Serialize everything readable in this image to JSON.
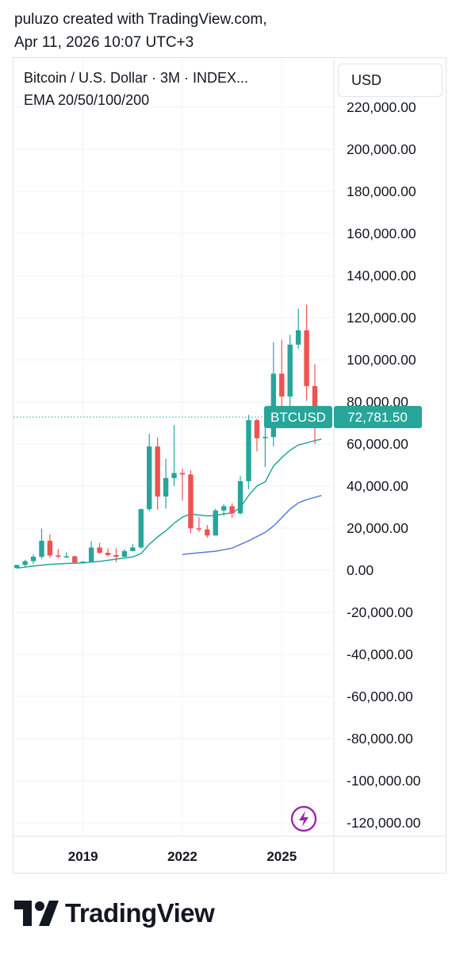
{
  "header": {
    "line1": "puluzo created with TradingView.com,",
    "line2": "Apr 11, 2026 10:07 UTC+3"
  },
  "legend": {
    "symbol_title": "Bitcoin / U.S. Dollar · 3M · INDEX...",
    "indicator": "EMA 20/50/100/200"
  },
  "currency_button": "USD",
  "footer": {
    "brand": "TradingView"
  },
  "icons": {
    "alert": "lightning-bolt-icon",
    "logo": "tradingview-logo-icon"
  },
  "colors": {
    "up": "#26a69a",
    "down": "#ef5350",
    "ema_fast": "#26a69a",
    "ema_slow": "#5b7ddb",
    "bolt": "#9c27b0"
  },
  "chart_data": {
    "type": "candlestick",
    "symbol": "BTCUSD",
    "interval": "3M",
    "last_price": 72781.5,
    "last_price_label": "72,781.50",
    "ylim": [
      -120000,
      220000
    ],
    "y_ticks": [
      220000,
      200000,
      180000,
      160000,
      140000,
      120000,
      100000,
      80000,
      60000,
      40000,
      20000,
      0,
      -20000,
      -40000,
      -60000,
      -80000,
      -100000,
      -120000
    ],
    "y_tick_labels": [
      "220,000.00",
      "200,000.00",
      "180,000.00",
      "160,000.00",
      "140,000.00",
      "120,000.00",
      "100,000.00",
      "80,000.00",
      "60,000.00",
      "40,000.00",
      "20,000.00",
      "0.00",
      "-20,000.00",
      "-40,000.00",
      "-60,000.00",
      "-80,000.00",
      "-100,000.00",
      "-120,000.00"
    ],
    "x_ticks": [
      2019,
      2022,
      2025
    ],
    "x_tick_labels": [
      "2019",
      "2022",
      "2025"
    ],
    "xlim": [
      2016.9,
      2026.55
    ],
    "grid": true,
    "candles": [
      {
        "t": 2017.0,
        "o": 1000,
        "h": 2600,
        "l": 900,
        "c": 2500
      },
      {
        "t": 2017.25,
        "o": 2500,
        "h": 5000,
        "l": 1800,
        "c": 4300
      },
      {
        "t": 2017.5,
        "o": 4300,
        "h": 7500,
        "l": 3000,
        "c": 6400
      },
      {
        "t": 2017.75,
        "o": 6400,
        "h": 19800,
        "l": 5500,
        "c": 14000
      },
      {
        "t": 2018.0,
        "o": 14000,
        "h": 17000,
        "l": 6000,
        "c": 7000
      },
      {
        "t": 2018.25,
        "o": 7000,
        "h": 10000,
        "l": 5800,
        "c": 6400
      },
      {
        "t": 2018.5,
        "o": 6400,
        "h": 8500,
        "l": 5900,
        "c": 6600
      },
      {
        "t": 2018.75,
        "o": 6600,
        "h": 6900,
        "l": 3200,
        "c": 3700
      },
      {
        "t": 2019.0,
        "o": 3700,
        "h": 4200,
        "l": 3400,
        "c": 4100
      },
      {
        "t": 2019.25,
        "o": 4100,
        "h": 13800,
        "l": 4000,
        "c": 10800
      },
      {
        "t": 2019.5,
        "o": 10800,
        "h": 13000,
        "l": 7800,
        "c": 8300
      },
      {
        "t": 2019.75,
        "o": 8300,
        "h": 10400,
        "l": 6500,
        "c": 7200
      },
      {
        "t": 2020.0,
        "o": 7200,
        "h": 10500,
        "l": 3800,
        "c": 6400
      },
      {
        "t": 2020.25,
        "o": 6400,
        "h": 10000,
        "l": 6200,
        "c": 9100
      },
      {
        "t": 2020.5,
        "o": 9100,
        "h": 12400,
        "l": 9000,
        "c": 10800
      },
      {
        "t": 2020.75,
        "o": 10800,
        "h": 29300,
        "l": 10400,
        "c": 29000
      },
      {
        "t": 2021.0,
        "o": 29000,
        "h": 64800,
        "l": 28000,
        "c": 58800
      },
      {
        "t": 2021.25,
        "o": 58800,
        "h": 63000,
        "l": 28800,
        "c": 35000
      },
      {
        "t": 2021.5,
        "o": 35000,
        "h": 52900,
        "l": 29300,
        "c": 43800
      },
      {
        "t": 2021.75,
        "o": 43800,
        "h": 69000,
        "l": 40000,
        "c": 46200
      },
      {
        "t": 2022.0,
        "o": 46200,
        "h": 48200,
        "l": 33000,
        "c": 45500
      },
      {
        "t": 2022.25,
        "o": 45500,
        "h": 47500,
        "l": 17600,
        "c": 19900
      },
      {
        "t": 2022.5,
        "o": 19900,
        "h": 25200,
        "l": 18200,
        "c": 19400
      },
      {
        "t": 2022.75,
        "o": 19400,
        "h": 21500,
        "l": 15500,
        "c": 16500
      },
      {
        "t": 2023.0,
        "o": 16500,
        "h": 29200,
        "l": 16500,
        "c": 28400
      },
      {
        "t": 2023.25,
        "o": 28400,
        "h": 31400,
        "l": 25800,
        "c": 30400
      },
      {
        "t": 2023.5,
        "o": 30400,
        "h": 31800,
        "l": 24900,
        "c": 27000
      },
      {
        "t": 2023.75,
        "o": 27000,
        "h": 44700,
        "l": 26500,
        "c": 42300
      },
      {
        "t": 2024.0,
        "o": 42300,
        "h": 73800,
        "l": 38500,
        "c": 71300
      },
      {
        "t": 2024.25,
        "o": 71300,
        "h": 72000,
        "l": 56500,
        "c": 62700
      },
      {
        "t": 2024.5,
        "o": 62700,
        "h": 70000,
        "l": 49000,
        "c": 63300
      },
      {
        "t": 2024.75,
        "o": 63300,
        "h": 108300,
        "l": 58900,
        "c": 93400
      },
      {
        "t": 2025.0,
        "o": 93400,
        "h": 109500,
        "l": 76600,
        "c": 82500
      },
      {
        "t": 2025.25,
        "o": 82500,
        "h": 111900,
        "l": 74400,
        "c": 107200
      },
      {
        "t": 2025.5,
        "o": 107200,
        "h": 124200,
        "l": 105100,
        "c": 114000
      },
      {
        "t": 2025.75,
        "o": 114000,
        "h": 126200,
        "l": 80500,
        "c": 87500
      },
      {
        "t": 2026.0,
        "o": 87500,
        "h": 97900,
        "l": 60000,
        "c": 72781.5
      }
    ],
    "series": [
      {
        "type": "ema",
        "color": "#26a69a",
        "points": [
          [
            2017.0,
            1000
          ],
          [
            2017.5,
            2000
          ],
          [
            2018.0,
            2800
          ],
          [
            2018.5,
            3200
          ],
          [
            2019.0,
            3500
          ],
          [
            2019.5,
            4200
          ],
          [
            2020.0,
            5300
          ],
          [
            2020.5,
            6300
          ],
          [
            2020.75,
            7900
          ],
          [
            2021.0,
            12300
          ],
          [
            2021.25,
            15800
          ],
          [
            2021.5,
            18700
          ],
          [
            2021.75,
            22300
          ],
          [
            2022.0,
            25200
          ],
          [
            2022.25,
            26700
          ],
          [
            2022.5,
            26200
          ],
          [
            2022.75,
            25800
          ],
          [
            2023.0,
            26000
          ],
          [
            2023.25,
            26800
          ],
          [
            2023.5,
            27200
          ],
          [
            2023.75,
            29800
          ],
          [
            2024.0,
            35500
          ],
          [
            2024.25,
            40000
          ],
          [
            2024.5,
            42000
          ],
          [
            2024.75,
            49500
          ],
          [
            2025.0,
            53500
          ],
          [
            2025.25,
            57000
          ],
          [
            2025.5,
            59500
          ],
          [
            2025.75,
            60500
          ],
          [
            2026.0,
            61600
          ],
          [
            2026.2,
            62300
          ]
        ]
      },
      {
        "type": "ema",
        "color": "#5b7ddb",
        "points": [
          [
            2022.0,
            7500
          ],
          [
            2022.5,
            8300
          ],
          [
            2023.0,
            9000
          ],
          [
            2023.5,
            10500
          ],
          [
            2024.0,
            14000
          ],
          [
            2024.5,
            18000
          ],
          [
            2024.75,
            21000
          ],
          [
            2025.0,
            25000
          ],
          [
            2025.25,
            29000
          ],
          [
            2025.5,
            32000
          ],
          [
            2025.75,
            33500
          ],
          [
            2026.2,
            35500
          ]
        ]
      }
    ]
  }
}
